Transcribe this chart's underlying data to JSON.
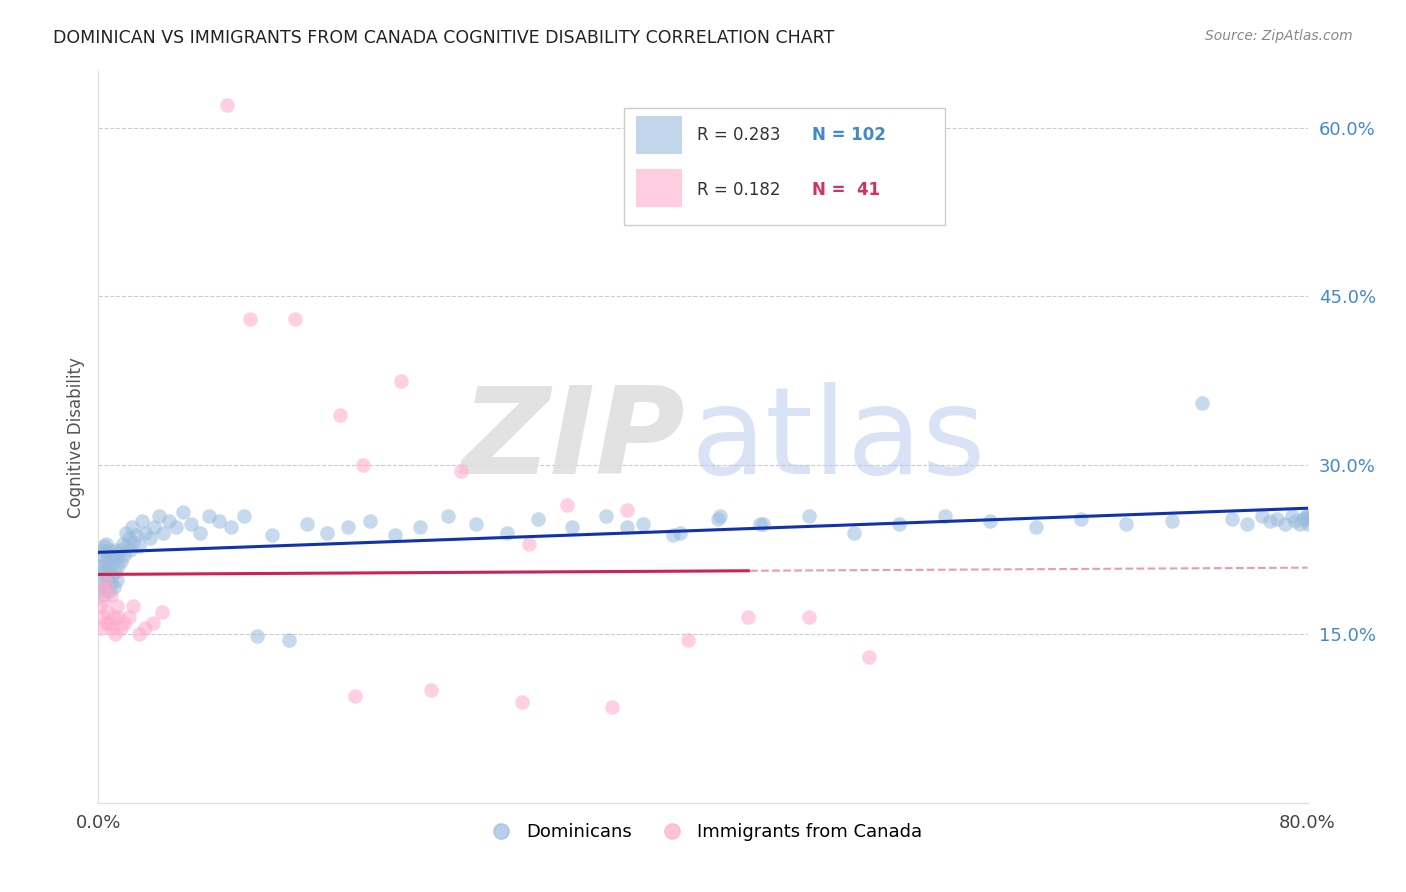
{
  "title": "DOMINICAN VS IMMIGRANTS FROM CANADA COGNITIVE DISABILITY CORRELATION CHART",
  "source": "Source: ZipAtlas.com",
  "ylabel": "Cognitive Disability",
  "right_yticks": [
    "60.0%",
    "45.0%",
    "30.0%",
    "15.0%"
  ],
  "right_ytick_vals": [
    0.6,
    0.45,
    0.3,
    0.15
  ],
  "legend_blue_R": "0.283",
  "legend_blue_N": "102",
  "legend_pink_R": "0.182",
  "legend_pink_N": " 41",
  "blue_color": "#99bbdd",
  "pink_color": "#ffaacc",
  "line_blue": "#1133aa",
  "line_pink": "#cc2255",
  "xlim": [
    0.0,
    0.8
  ],
  "ylim": [
    0.0,
    0.65
  ],
  "blue_x": [
    0.001,
    0.002,
    0.002,
    0.003,
    0.003,
    0.003,
    0.004,
    0.004,
    0.004,
    0.005,
    0.005,
    0.005,
    0.006,
    0.006,
    0.007,
    0.007,
    0.007,
    0.008,
    0.008,
    0.009,
    0.009,
    0.01,
    0.01,
    0.011,
    0.011,
    0.012,
    0.012,
    0.013,
    0.014,
    0.015,
    0.016,
    0.017,
    0.018,
    0.019,
    0.02,
    0.021,
    0.022,
    0.023,
    0.025,
    0.027,
    0.029,
    0.031,
    0.034,
    0.037,
    0.04,
    0.043,
    0.047,
    0.051,
    0.056,
    0.061,
    0.067,
    0.073,
    0.08,
    0.088,
    0.096,
    0.105,
    0.115,
    0.126,
    0.138,
    0.151,
    0.165,
    0.18,
    0.196,
    0.213,
    0.231,
    0.25,
    0.27,
    0.291,
    0.313,
    0.336,
    0.36,
    0.385,
    0.411,
    0.438,
    0.35,
    0.38,
    0.41,
    0.44,
    0.47,
    0.5,
    0.53,
    0.56,
    0.59,
    0.62,
    0.65,
    0.68,
    0.71,
    0.73,
    0.75,
    0.76,
    0.77,
    0.775,
    0.78,
    0.785,
    0.79,
    0.792,
    0.795,
    0.797,
    0.799,
    0.8,
    0.8,
    0.8
  ],
  "blue_y": [
    0.21,
    0.195,
    0.22,
    0.185,
    0.205,
    0.225,
    0.19,
    0.21,
    0.228,
    0.195,
    0.215,
    0.23,
    0.2,
    0.222,
    0.188,
    0.208,
    0.225,
    0.195,
    0.218,
    0.202,
    0.22,
    0.192,
    0.215,
    0.205,
    0.225,
    0.198,
    0.218,
    0.21,
    0.225,
    0.215,
    0.23,
    0.22,
    0.24,
    0.228,
    0.235,
    0.225,
    0.245,
    0.232,
    0.238,
    0.228,
    0.25,
    0.24,
    0.235,
    0.245,
    0.255,
    0.24,
    0.25,
    0.245,
    0.258,
    0.248,
    0.24,
    0.255,
    0.25,
    0.245,
    0.255,
    0.148,
    0.238,
    0.145,
    0.248,
    0.24,
    0.245,
    0.25,
    0.238,
    0.245,
    0.255,
    0.248,
    0.24,
    0.252,
    0.245,
    0.255,
    0.248,
    0.24,
    0.255,
    0.248,
    0.245,
    0.238,
    0.252,
    0.248,
    0.255,
    0.24,
    0.248,
    0.255,
    0.25,
    0.245,
    0.252,
    0.248,
    0.25,
    0.355,
    0.252,
    0.248,
    0.255,
    0.25,
    0.252,
    0.248,
    0.255,
    0.25,
    0.248,
    0.252,
    0.255,
    0.248,
    0.252,
    0.255
  ],
  "pink_x": [
    0.001,
    0.002,
    0.003,
    0.003,
    0.004,
    0.005,
    0.005,
    0.006,
    0.007,
    0.008,
    0.009,
    0.01,
    0.011,
    0.012,
    0.013,
    0.015,
    0.017,
    0.02,
    0.023,
    0.027,
    0.031,
    0.036,
    0.042,
    0.085,
    0.1,
    0.13,
    0.16,
    0.2,
    0.24,
    0.285,
    0.175,
    0.31,
    0.35,
    0.39,
    0.43,
    0.47,
    0.51,
    0.17,
    0.22,
    0.28,
    0.34
  ],
  "pink_y": [
    0.175,
    0.155,
    0.19,
    0.165,
    0.18,
    0.16,
    0.195,
    0.17,
    0.16,
    0.185,
    0.155,
    0.165,
    0.15,
    0.175,
    0.165,
    0.155,
    0.16,
    0.165,
    0.175,
    0.15,
    0.155,
    0.16,
    0.17,
    0.62,
    0.43,
    0.43,
    0.345,
    0.375,
    0.295,
    0.23,
    0.3,
    0.265,
    0.26,
    0.145,
    0.165,
    0.165,
    0.13,
    0.095,
    0.1,
    0.09,
    0.085
  ]
}
